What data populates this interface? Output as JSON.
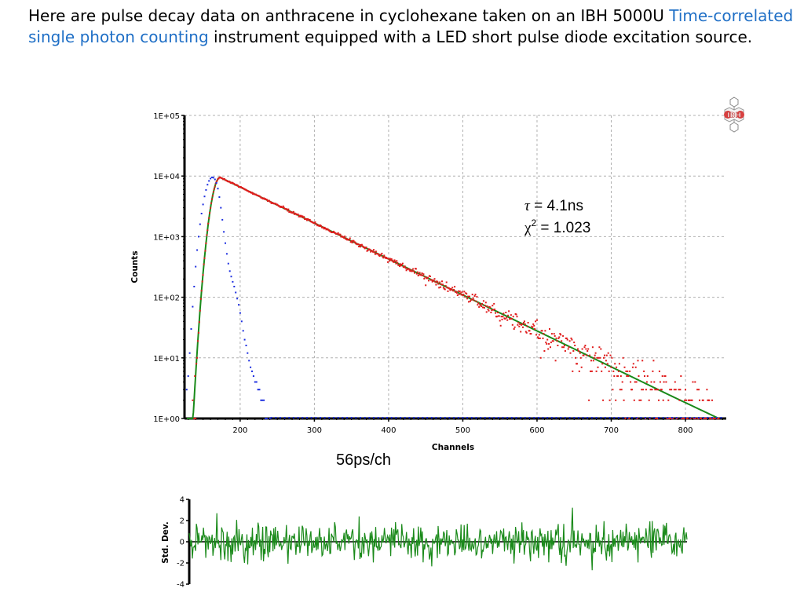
{
  "intro": {
    "text_before": "Here are pulse decay data on anthracene in cyclohexane taken on an IBH 5000U ",
    "link_text": "Time-correlated single photon counting",
    "text_after": " instrument equipped with a LED short pulse diode excitation source."
  },
  "colors": {
    "link": "#1f6fc6",
    "decay": "#e01c1c",
    "irf": "#1c2ee0",
    "fit": "#1a8a1a",
    "residuals": "#1a8a1a",
    "grid": "#b0b0b0"
  },
  "logo": {
    "text": "IBH"
  },
  "annotations": {
    "tau_symbol": "τ",
    "tau_value": " = 4.1ns",
    "chi_symbol": "χ",
    "chi_sup": "2",
    "chi_value": " = 1.023",
    "resolution": "56ps/ch"
  },
  "chart_data": [
    {
      "type": "scatter",
      "title": "",
      "xlabel": "Channels",
      "ylabel": "Counts",
      "x_range": [
        125,
        855
      ],
      "y_scale": "log",
      "y_range": [
        1,
        100000
      ],
      "x_ticks": [
        200,
        300,
        400,
        500,
        600,
        700,
        800
      ],
      "y_tick_labels": [
        "1E+00",
        "1E+01",
        "1E+02",
        "1E+03",
        "1E+04",
        "1E+05"
      ],
      "grid": true,
      "irf": {
        "peak_channel": 163,
        "peak_counts": 9500,
        "onset_channel": 128,
        "points": [
          [
            128,
            3
          ],
          [
            130,
            5
          ],
          [
            132,
            12
          ],
          [
            134,
            30
          ],
          [
            136,
            70
          ],
          [
            138,
            150
          ],
          [
            140,
            320
          ],
          [
            142,
            600
          ],
          [
            144,
            1000
          ],
          [
            146,
            1600
          ],
          [
            148,
            2400
          ],
          [
            150,
            3400
          ],
          [
            152,
            4600
          ],
          [
            154,
            5900
          ],
          [
            156,
            7200
          ],
          [
            158,
            8300
          ],
          [
            160,
            9100
          ],
          [
            162,
            9500
          ],
          [
            164,
            9400
          ],
          [
            166,
            8800
          ],
          [
            168,
            7700
          ],
          [
            170,
            6200
          ],
          [
            172,
            4500
          ],
          [
            174,
            3000
          ],
          [
            176,
            1900
          ],
          [
            178,
            1200
          ],
          [
            180,
            780
          ],
          [
            182,
            520
          ],
          [
            184,
            360
          ],
          [
            186,
            270
          ],
          [
            188,
            220
          ],
          [
            190,
            180
          ],
          [
            192,
            150
          ],
          [
            194,
            120
          ],
          [
            196,
            95
          ],
          [
            198,
            75
          ],
          [
            200,
            55
          ],
          [
            202,
            40
          ],
          [
            204,
            28
          ],
          [
            206,
            20
          ],
          [
            208,
            16
          ],
          [
            210,
            12
          ],
          [
            212,
            9
          ],
          [
            214,
            7
          ],
          [
            216,
            6
          ],
          [
            218,
            5
          ],
          [
            220,
            4
          ],
          [
            222,
            4
          ],
          [
            224,
            3
          ],
          [
            226,
            3
          ],
          [
            228,
            2
          ],
          [
            230,
            2
          ],
          [
            232,
            2
          ],
          [
            234,
            1
          ],
          [
            236,
            1
          ],
          [
            240,
            1
          ]
        ]
      },
      "decay": {
        "peak_channel": 173,
        "peak_counts": 9500,
        "lifetime_ns": 4.1,
        "ns_per_channel": 0.056,
        "last_channel": 845
      },
      "fit": {
        "peak_channel": 172,
        "peak_counts": 9500,
        "end_channel": 845,
        "end_counts": 1
      }
    },
    {
      "type": "line",
      "title": "",
      "xlabel": "",
      "ylabel": "Std. Dev.",
      "x_range": [
        125,
        855
      ],
      "y_range": [
        -4,
        4
      ],
      "y_ticks": [
        4,
        2,
        0,
        -2,
        -4
      ],
      "residual_start_channel": 125,
      "residual_end_channel": 800,
      "residual_rms": 0.85
    }
  ]
}
